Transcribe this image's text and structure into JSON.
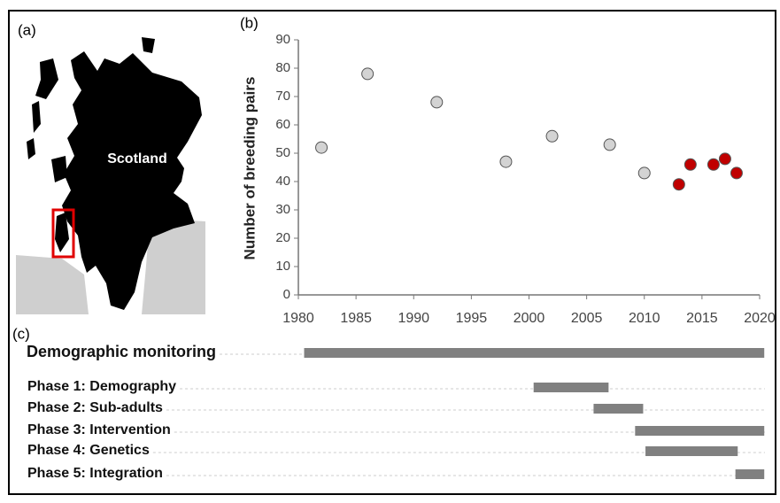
{
  "map": {
    "panel_label": "(a)",
    "label": "Scotland"
  },
  "chart_data": [
    {
      "type": "scatter",
      "panel_label": "(b)",
      "y_label": "Number of breeding pairs",
      "xlim": [
        1980,
        2020
      ],
      "xticks": [
        1980,
        1985,
        1990,
        1995,
        2000,
        2005,
        2010,
        2015,
        2020
      ],
      "ylim": [
        0,
        90
      ],
      "yticks": [
        0,
        10,
        20,
        30,
        40,
        50,
        60,
        70,
        80,
        90
      ],
      "series": [
        {
          "color": "#d3d3d3",
          "x": [
            1982,
            1986,
            1992,
            1998,
            2002,
            2007,
            2010
          ],
          "values": [
            52,
            78,
            68,
            47,
            56,
            53,
            43
          ]
        },
        {
          "color": "#c00000",
          "x": [
            2013,
            2014,
            2016,
            2017,
            2018
          ],
          "values": [
            39,
            46,
            46,
            48,
            43
          ]
        }
      ]
    },
    {
      "type": "gantt",
      "panel_label": "(c)",
      "color": "#808080",
      "xlim": [
        1980,
        2020
      ],
      "categories": [
        "Demographic monitoring",
        "Phase 1: Demography",
        "Phase 2: Sub-adults",
        "Phase 3: Intervention",
        "Phase 4: Genetics",
        "Phase 5: Integration"
      ],
      "start": [
        1980.5,
        2000.4,
        2005.6,
        2009.2,
        2010.1,
        2017.9
      ],
      "end": [
        2020.4,
        2006.9,
        2009.9,
        2020.4,
        2018.1,
        2020.4
      ]
    }
  ]
}
